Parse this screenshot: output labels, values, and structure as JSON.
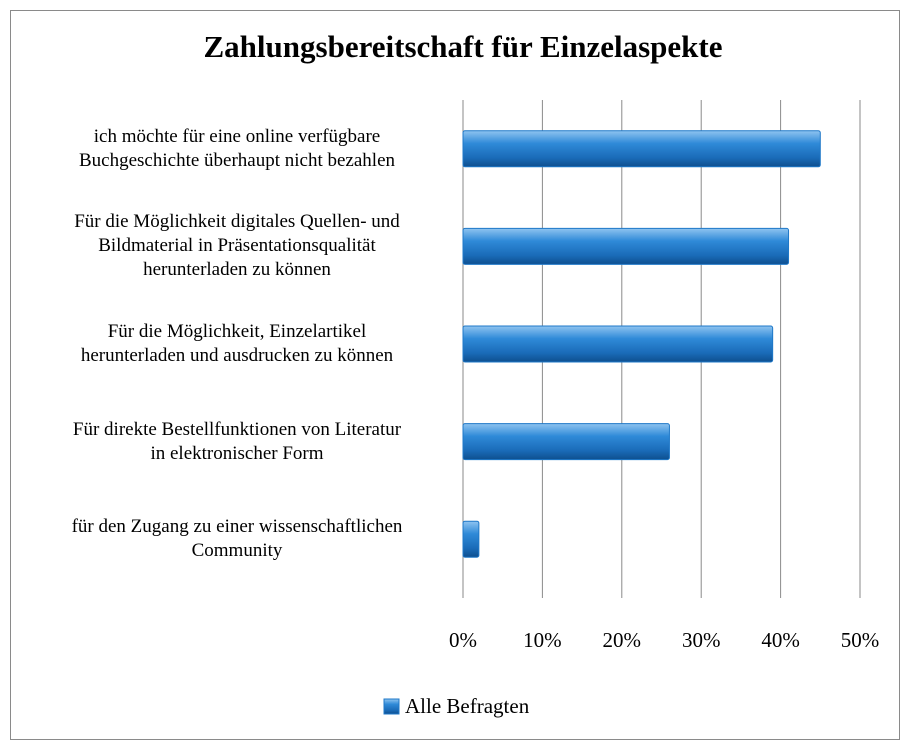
{
  "chart_data": {
    "type": "hbar",
    "title": "Zahlungsbereitschaft für Einzelaspekte",
    "categories": [
      "ich möchte für eine online verfügbare\nBuchgeschichte überhaupt nicht bezahlen",
      "Für die Möglichkeit digitales Quellen- und\nBildmaterial in Präsentationsqualität\nherunterladen zu können",
      "Für die Möglichkeit, Einzelartikel\nherunterladen und ausdrucken zu können",
      "Für direkte Bestellfunktionen von Literatur\nin elektronischer Form",
      "für den Zugang zu einer wissenschaftlichen\nCommunity"
    ],
    "series": [
      {
        "name": "Alle Befragten",
        "color": "#1f78c8",
        "values": [
          45,
          41,
          39,
          26,
          2
        ]
      }
    ],
    "xlim": [
      0,
      50
    ],
    "xticks": [
      {
        "value": 0,
        "label": "0%"
      },
      {
        "value": 10,
        "label": "10%"
      },
      {
        "value": 20,
        "label": "20%"
      },
      {
        "value": 30,
        "label": "30%"
      },
      {
        "value": 40,
        "label": "40%"
      },
      {
        "value": 50,
        "label": "50%"
      }
    ],
    "grid": true,
    "legend": "bottom"
  }
}
